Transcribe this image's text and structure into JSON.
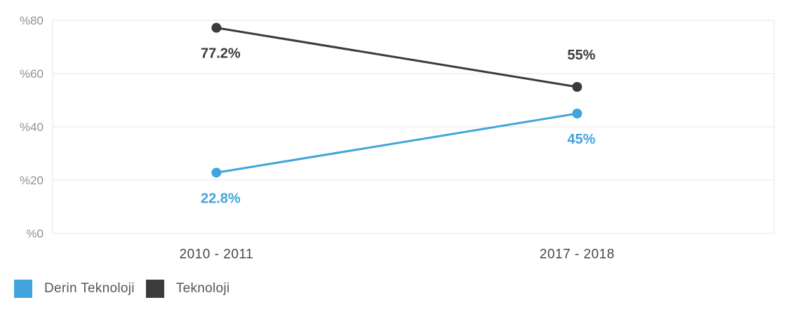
{
  "colors": {
    "background": "#ffffff",
    "grid": "#e7e7e7",
    "axis_border": "#e3e3e3",
    "ytick_text": "#90909a",
    "xtick_text": "#45464e",
    "legend_text": "#55565e"
  },
  "chart_data": {
    "type": "line",
    "categories": [
      "2010 - 2011",
      "2017 - 2018"
    ],
    "series": [
      {
        "name": "Derin Teknoloji",
        "color": "#41a4dc",
        "values": [
          22.8,
          45
        ],
        "data_labels": [
          "22.8%",
          "45%"
        ],
        "label_placement": [
          "below",
          "below"
        ]
      },
      {
        "name": "Teknoloji",
        "color": "#3b3b3d",
        "values": [
          77.2,
          55
        ],
        "data_labels": [
          "77.2%",
          "55%"
        ],
        "label_placement": [
          "below",
          "above"
        ]
      }
    ],
    "yticks": [
      0,
      20,
      40,
      60,
      80
    ],
    "ytick_labels": [
      "%0",
      "%20",
      "%40",
      "%60",
      "%80"
    ],
    "ylim": [
      0,
      80
    ],
    "grid": true,
    "title": "",
    "xlabel": "",
    "ylabel": "",
    "legend_position": "bottom-left"
  }
}
